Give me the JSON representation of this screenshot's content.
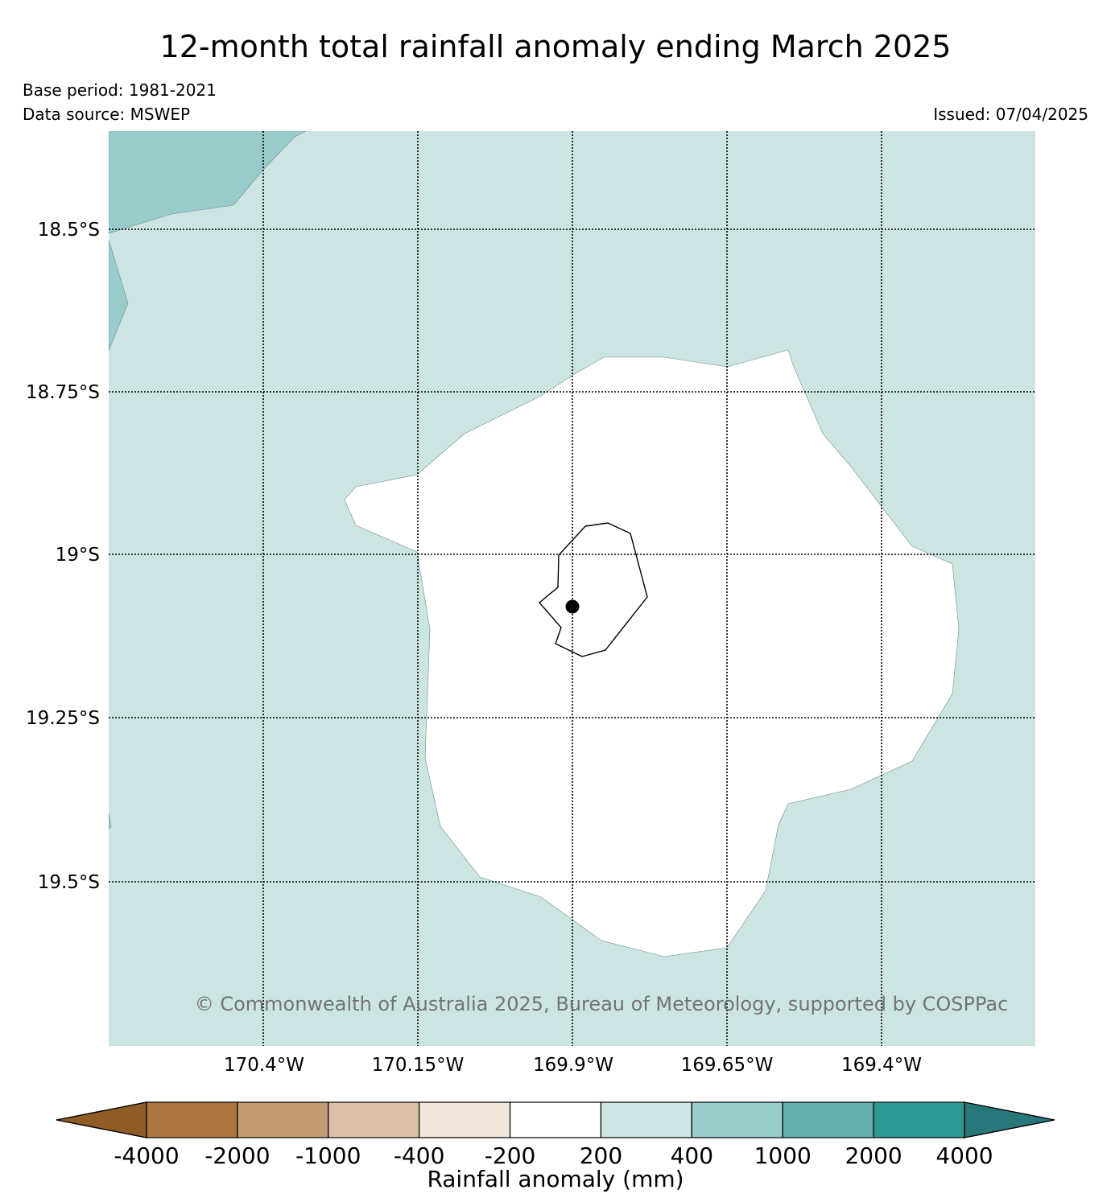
{
  "title": "12-month total rainfall anomaly ending March 2025",
  "base_period": "Base period: 1981-2021",
  "data_source": "Data source: MSWEP",
  "issued": "Issued: 07/04/2025",
  "copyright": "© Commonwealth of Australia 2025, Bureau of Meteorology, supported by COSPPac",
  "map": {
    "longitude_labels": [
      "170.4°W",
      "170.15°W",
      "169.9°W",
      "169.65°W",
      "169.4°W"
    ],
    "latitude_labels": [
      "18.5°S",
      "18.75°S",
      "19°S",
      "19.25°S",
      "19.5°S"
    ],
    "region_classes": [
      {
        "range": "200 to 400",
        "color": "#cce5e3"
      },
      {
        "range": "400 to 1000",
        "color": "#9acbcb"
      },
      {
        "range": "-200 to 200",
        "color": "#ffffff"
      }
    ],
    "station_marker": "black-dot"
  },
  "colorbar": {
    "title": "Rainfall anomaly (mm)",
    "ticks": [
      "-4000",
      "-2000",
      "-1000",
      "-400",
      "-200",
      "200",
      "400",
      "1000",
      "2000",
      "4000"
    ],
    "colors": [
      "#8f5b27",
      "#ac7642",
      "#c39b73",
      "#dbc1a9",
      "#f1e6dc",
      "#ffffff",
      "#cce5e3",
      "#9acbcb",
      "#63b0ad",
      "#2f9994",
      "#28777a"
    ]
  }
}
